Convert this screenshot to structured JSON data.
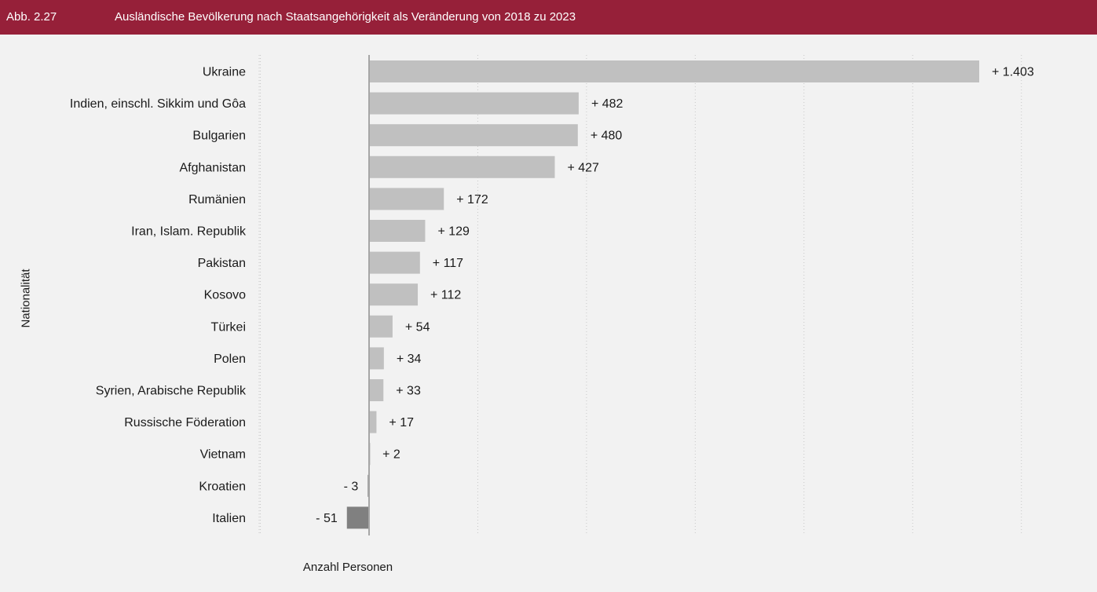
{
  "header": {
    "figure_number": "Abb. 2.27",
    "title": "Ausländische Bevölkerung nach Staatsangehörigkeit als Veränderung von 2018 zu 2023"
  },
  "colors": {
    "header_bg": "#962039",
    "bar_positive": "#c0c0c0",
    "bar_negative": "#808080",
    "gridline": "#c8c8c8",
    "axis_line": "#a6a6a6",
    "background": "#f2f2f2"
  },
  "chart_data": {
    "type": "bar",
    "orientation": "horizontal",
    "categories": [
      "Ukraine",
      "Indien, einschl. Sikkim und Gôa",
      "Bulgarien",
      "Afghanistan",
      "Rumänien",
      "Iran, Islam. Republik",
      "Pakistan",
      "Kosovo",
      "Türkei",
      "Polen",
      "Syrien, Arabische Republik",
      "Russische Föderation",
      "Vietnam",
      "Kroatien",
      "Italien"
    ],
    "values": [
      1403,
      482,
      480,
      427,
      172,
      129,
      117,
      112,
      54,
      34,
      33,
      17,
      2,
      -3,
      -51
    ],
    "value_labels": [
      "+ 1.403",
      "+ 482",
      "+ 480",
      "+ 427",
      "+ 172",
      "+ 129",
      "+ 117",
      "+ 112",
      "+ 54",
      "+ 34",
      "+ 33",
      "+ 17",
      "+ 2",
      "- 3",
      "- 51"
    ],
    "xlabel": "Anzahl Personen",
    "ylabel": "Nationalität",
    "xlim": [
      -250,
      1500
    ],
    "grid": "vertical dotted",
    "legend": "none"
  }
}
